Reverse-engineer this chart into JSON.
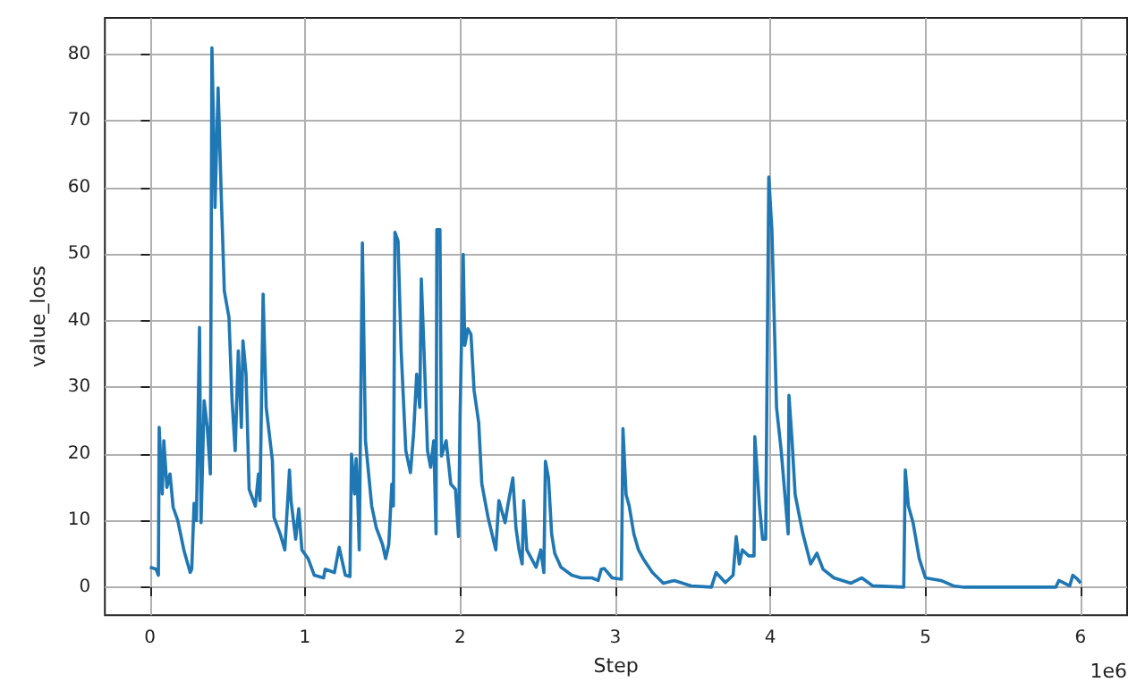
{
  "chart_data": {
    "type": "line",
    "xlabel": "Step",
    "ylabel": "value_loss",
    "annotations": [
      "1e6"
    ],
    "x": [
      0,
      0.04,
      0.055,
      0.06,
      0.08,
      0.09,
      0.11,
      0.13,
      0.15,
      0.18,
      0.22,
      0.26,
      0.27,
      0.285,
      0.3,
      0.32,
      0.33,
      0.35,
      0.37,
      0.39,
      0.4,
      0.41,
      0.42,
      0.44,
      0.46,
      0.48,
      0.51,
      0.53,
      0.55,
      0.57,
      0.59,
      0.6,
      0.62,
      0.64,
      0.68,
      0.7,
      0.71,
      0.73,
      0.75,
      0.79,
      0.8,
      0.84,
      0.87,
      0.9,
      0.91,
      0.94,
      0.96,
      0.98,
      1.02,
      1.06,
      1.12,
      1.13,
      1.19,
      1.22,
      1.26,
      1.29,
      1.3,
      1.32,
      1.33,
      1.34,
      1.35,
      1.37,
      1.39,
      1.43,
      1.46,
      1.5,
      1.52,
      1.54,
      1.56,
      1.57,
      1.58,
      1.6,
      1.62,
      1.65,
      1.68,
      1.7,
      1.72,
      1.74,
      1.75,
      1.77,
      1.79,
      1.81,
      1.83,
      1.845,
      1.85,
      1.87,
      1.88,
      1.91,
      1.94,
      1.97,
      1.99,
      2,
      2.02,
      2.03,
      2.05,
      2.07,
      2.09,
      2.12,
      2.14,
      2.18,
      2.23,
      2.25,
      2.29,
      2.31,
      2.34,
      2.36,
      2.38,
      2.4,
      2.41,
      2.43,
      2.49,
      2.52,
      2.54,
      2.55,
      2.57,
      2.59,
      2.61,
      2.65,
      2.72,
      2.78,
      2.85,
      2.89,
      2.91,
      2.93,
      2.98,
      3.04,
      3.05,
      3.07,
      3.09,
      3.12,
      3.15,
      3.18,
      3.24,
      3.31,
      3.38,
      3.49,
      3.62,
      3.65,
      3.71,
      3.76,
      3.78,
      3.8,
      3.82,
      3.86,
      3.895,
      3.9,
      3.93,
      3.95,
      3.97,
      3.99,
      4.01,
      4.04,
      4.07,
      4.1,
      4.115,
      4.12,
      4.14,
      4.16,
      4.21,
      4.26,
      4.3,
      4.34,
      4.41,
      4.52,
      4.59,
      4.66,
      4.86,
      4.87,
      4.89,
      4.92,
      4.96,
      5,
      5.1,
      5.18,
      5.25,
      5.84,
      5.86,
      5.93,
      5.95,
      5.98,
      6
    ],
    "series": [
      {
        "color": "#1f77b4",
        "values": [
          3,
          2.7,
          1.8,
          24,
          14,
          22,
          15,
          17,
          12,
          10,
          5.5,
          2.2,
          2.7,
          12.6,
          10,
          39,
          9.7,
          28,
          24,
          17,
          81,
          70,
          57,
          75,
          59,
          44.5,
          40.5,
          28,
          20.5,
          35.5,
          24,
          37,
          32,
          14.7,
          12.2,
          17,
          13,
          44,
          27,
          19,
          10.5,
          8,
          5.6,
          17.6,
          13,
          7.2,
          11.8,
          5.6,
          4.3,
          1.8,
          1.4,
          2.7,
          2.2,
          6,
          1.8,
          1.6,
          20,
          14,
          19.3,
          13.9,
          5.6,
          51.7,
          22,
          12.2,
          8.9,
          6.4,
          4.3,
          6.4,
          15.5,
          12.2,
          53.3,
          52,
          35.5,
          20.5,
          17.2,
          23,
          32,
          27,
          46.3,
          33.8,
          20.5,
          18,
          22,
          8,
          53.7,
          53.7,
          19.7,
          22,
          15.5,
          14.7,
          7.6,
          26,
          50,
          36.3,
          38.8,
          38,
          29.6,
          24.7,
          15.5,
          10.5,
          5.6,
          13,
          9.7,
          12.6,
          16.4,
          8.9,
          5.6,
          3.5,
          13,
          5.6,
          3,
          5.6,
          2.2,
          18.9,
          16.4,
          8,
          5.1,
          3,
          1.8,
          1.4,
          1.4,
          1,
          2.7,
          2.8,
          1.4,
          1.2,
          23.8,
          13.9,
          12.2,
          8,
          5.6,
          4.3,
          2.2,
          0.6,
          1,
          0.2,
          0,
          2.2,
          0.7,
          1.8,
          7.6,
          3.5,
          5.6,
          4.7,
          4.7,
          22.6,
          12.2,
          7.2,
          7.2,
          61.6,
          53.7,
          27,
          20.5,
          12.2,
          8,
          28.8,
          22,
          13.9,
          8,
          3.5,
          5.1,
          2.7,
          1.4,
          0.6,
          1.4,
          0.2,
          0,
          17.6,
          12.2,
          9.7,
          4.3,
          1.4,
          1,
          0.2,
          0,
          0,
          1,
          0.2,
          1.8,
          1.2,
          0.6
        ]
      }
    ],
    "xlim": [
      -0.29,
      6.3
    ],
    "ylim": [
      -4.2,
      85.5
    ],
    "xticks": [
      0,
      1,
      2,
      3,
      4,
      5,
      6
    ],
    "yticks": [
      0,
      10,
      20,
      30,
      40,
      50,
      60,
      70,
      80
    ],
    "grid": true,
    "marker": "none",
    "line_style": "solid"
  }
}
